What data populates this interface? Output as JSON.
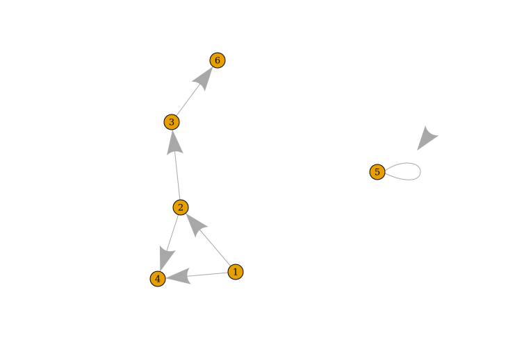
{
  "graph": {
    "directed": true,
    "colors": {
      "node_fill": "#E69F00",
      "node_stroke": "#000000",
      "edge": "#A8A8A8",
      "label": "#000000",
      "background": "#FFFFFF"
    },
    "nodes": [
      {
        "id": "1",
        "label": "1"
      },
      {
        "id": "2",
        "label": "2"
      },
      {
        "id": "3",
        "label": "3"
      },
      {
        "id": "4",
        "label": "4"
      },
      {
        "id": "5",
        "label": "5"
      },
      {
        "id": "6",
        "label": "6"
      }
    ],
    "edges": [
      {
        "from": "1",
        "to": "2"
      },
      {
        "from": "1",
        "to": "4"
      },
      {
        "from": "2",
        "to": "4"
      },
      {
        "from": "2",
        "to": "3"
      },
      {
        "from": "3",
        "to": "6"
      },
      {
        "from": "5",
        "to": "5"
      }
    ]
  }
}
